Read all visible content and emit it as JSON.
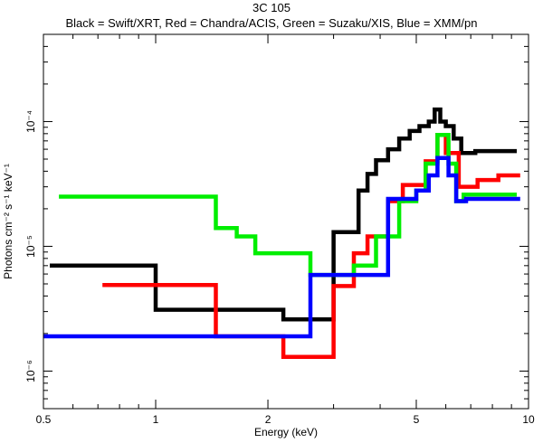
{
  "chart_data": {
    "type": "line",
    "title": "3C 105",
    "subtitle": "Black = Swift/XRT, Red = Chandra/ACIS, Green = Suzaku/XIS, Blue = XMM/pn",
    "xlabel": "Energy (keV)",
    "ylabel": "Photons cm⁻² s⁻¹ keV⁻¹",
    "xscale": "log",
    "yscale": "log",
    "xlim": [
      0.5,
      10
    ],
    "ylim": [
      5e-07,
      0.0005
    ],
    "x_ticks": [
      0.5,
      1,
      2,
      5,
      10
    ],
    "x_tick_labels": [
      "0.5",
      "1",
      "2",
      "5",
      "10"
    ],
    "y_ticks": [
      1e-06,
      1e-05,
      0.0001
    ],
    "y_tick_labels": [
      "10⁻⁶",
      "10⁻⁵",
      "10⁻⁴"
    ],
    "grid": false,
    "legend": "none",
    "series": [
      {
        "color": "#000000",
        "x": [
          0.52,
          1.0,
          1.0,
          2.2,
          2.2,
          3.0,
          3.0,
          3.5,
          3.5,
          3.7,
          3.7,
          3.9,
          3.9,
          4.2,
          4.2,
          4.5,
          4.5,
          4.8,
          4.8,
          5.1,
          5.1,
          5.4,
          5.4,
          5.6,
          5.6,
          5.8,
          5.8,
          6.0,
          6.0,
          6.3,
          6.3,
          6.6,
          6.6,
          7.2,
          7.2,
          9.3
        ],
        "y": [
          7e-06,
          7e-06,
          3.1e-06,
          3.1e-06,
          2.6e-06,
          2.6e-06,
          1.3e-05,
          1.3e-05,
          2.8e-05,
          2.8e-05,
          3.8e-05,
          3.8e-05,
          4.9e-05,
          4.9e-05,
          6e-05,
          6e-05,
          7.3e-05,
          7.3e-05,
          8.4e-05,
          8.4e-05,
          9.2e-05,
          9.2e-05,
          0.0001,
          0.0001,
          0.000125,
          0.000125,
          0.0001,
          0.0001,
          9.2e-05,
          9.2e-05,
          7.3e-05,
          7.3e-05,
          5.6e-05,
          5.6e-05,
          5.8e-05,
          5.8e-05
        ]
      },
      {
        "color": "#ff0000",
        "x": [
          0.72,
          1.45,
          1.45,
          2.2,
          2.2,
          3.0,
          3.0,
          3.4,
          3.4,
          3.7,
          3.7,
          4.2,
          4.2,
          4.6,
          4.6,
          5.3,
          5.3,
          5.7,
          5.7,
          6.0,
          6.0,
          6.5,
          6.5,
          7.3,
          7.3,
          8.3,
          8.3,
          9.5
        ],
        "y": [
          4.9e-06,
          4.9e-06,
          1.9e-06,
          1.9e-06,
          1.3e-06,
          1.3e-06,
          4.8e-06,
          4.8e-06,
          8.8e-06,
          8.8e-06,
          1.2e-05,
          1.2e-05,
          2.3e-05,
          2.3e-05,
          3.1e-05,
          3.1e-05,
          4.8e-05,
          4.8e-05,
          7.8e-05,
          7.8e-05,
          5.6e-05,
          5.6e-05,
          3e-05,
          3e-05,
          3.4e-05,
          3.4e-05,
          3.7e-05,
          3.7e-05
        ]
      },
      {
        "color": "#00ee00",
        "x": [
          0.55,
          1.45,
          1.45,
          1.65,
          1.65,
          1.85,
          1.85,
          2.6,
          2.6,
          3.4,
          3.4,
          3.9,
          3.9,
          4.5,
          4.5,
          5.0,
          5.0,
          5.3,
          5.3,
          5.7,
          5.7,
          6.1,
          6.1,
          6.4,
          6.4,
          6.7,
          6.7,
          9.3
        ],
        "y": [
          2.5e-05,
          2.5e-05,
          1.4e-05,
          1.4e-05,
          1.2e-05,
          1.2e-05,
          8.8e-06,
          8.8e-06,
          5.9e-06,
          5.9e-06,
          7e-06,
          7e-06,
          1.2e-05,
          1.2e-05,
          2.3e-05,
          2.3e-05,
          2.8e-05,
          2.8e-05,
          4.6e-05,
          4.6e-05,
          7.8e-05,
          7.8e-05,
          4.6e-05,
          4.6e-05,
          2.3e-05,
          2.3e-05,
          2.6e-05,
          2.6e-05
        ]
      },
      {
        "color": "#0000ff",
        "x": [
          0.5,
          2.6,
          2.6,
          4.2,
          4.2,
          5.0,
          5.0,
          5.4,
          5.4,
          5.7,
          5.7,
          6.1,
          6.1,
          6.4,
          6.4,
          6.8,
          6.8,
          9.5
        ],
        "y": [
          1.9e-06,
          1.9e-06,
          5.9e-06,
          5.9e-06,
          2.4e-05,
          2.4e-05,
          2.8e-05,
          2.8e-05,
          3.7e-05,
          3.7e-05,
          5.1e-05,
          5.1e-05,
          3.7e-05,
          3.7e-05,
          2.3e-05,
          2.3e-05,
          2.4e-05,
          2.4e-05
        ]
      }
    ]
  }
}
